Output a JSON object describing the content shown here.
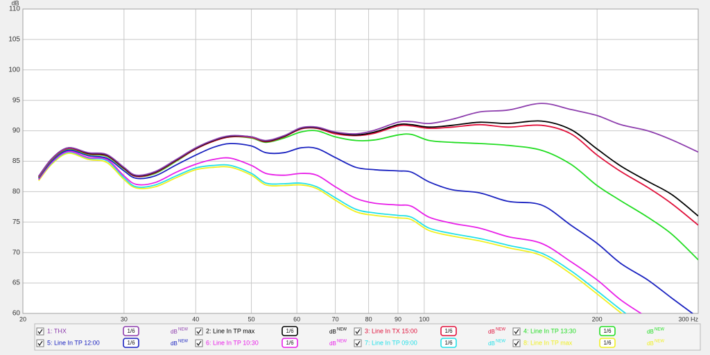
{
  "chart_data": {
    "type": "line",
    "x_scale": "log",
    "grid": true,
    "y_label": "dB",
    "xlim": [
      20,
      300
    ],
    "ylim": [
      60,
      110
    ],
    "xticks": [
      20,
      30,
      40,
      50,
      60,
      70,
      80,
      90,
      100,
      200,
      {
        "value": 300,
        "label": "300 Hz"
      }
    ],
    "yticks": [
      60,
      65,
      70,
      75,
      80,
      85,
      90,
      95,
      100,
      105,
      110
    ],
    "x": [
      21.3,
      22.5,
      24,
      26,
      28,
      30,
      31.5,
      34,
      37,
      40,
      43,
      46,
      50,
      53,
      57,
      61,
      65,
      70,
      76,
      82,
      90,
      95,
      102,
      112,
      125,
      140,
      160,
      180,
      200,
      220,
      245,
      270,
      300
    ],
    "series": [
      {
        "name": "1: THX",
        "color": "#8d3dad",
        "values": [
          82.5,
          85.5,
          87.2,
          86.4,
          86.1,
          84,
          82.7,
          83.3,
          85.3,
          87.2,
          88.5,
          89.2,
          89,
          88.4,
          89.2,
          90.5,
          90.6,
          89.8,
          89.5,
          90.1,
          91.4,
          91.5,
          91.2,
          91.9,
          93.1,
          93.4,
          94.5,
          93.5,
          92.5,
          91,
          90,
          88.5,
          86.5
        ]
      },
      {
        "name": "2: Line In TP max",
        "color": "#000000",
        "values": [
          82.5,
          85.5,
          87.2,
          86.3,
          86,
          83.9,
          82.6,
          83.2,
          85.2,
          87.1,
          88.4,
          89.1,
          89,
          88.3,
          89.1,
          90.4,
          90.5,
          89.7,
          89.3,
          89.8,
          91,
          91,
          90.6,
          90.9,
          91.4,
          91.2,
          91.6,
          90.2,
          87,
          84.2,
          81.7,
          79.5,
          76
        ]
      },
      {
        "name": "3: Line In TX 15:00",
        "color": "#e0103a",
        "values": [
          82.4,
          85.4,
          87.1,
          86.2,
          85.9,
          83.8,
          82.5,
          83.1,
          85.1,
          87,
          88.3,
          89,
          88.9,
          88.2,
          89,
          90.3,
          90.4,
          89.5,
          89.2,
          89.6,
          90.8,
          90.8,
          90.4,
          90.6,
          91,
          90.6,
          90.9,
          89.5,
          86,
          83.3,
          80.7,
          78,
          74.5
        ]
      },
      {
        "name": "4: Line In TP 13:30",
        "color": "#22dd22",
        "values": [
          82.3,
          85.3,
          87,
          86.1,
          85.8,
          83.7,
          82.5,
          83,
          85,
          87,
          88.3,
          89,
          88.8,
          88.1,
          88.8,
          89.8,
          90,
          89,
          88.4,
          88.5,
          89.3,
          89.4,
          88.4,
          88.1,
          87.9,
          87.6,
          86.8,
          84.5,
          81,
          78.5,
          75.8,
          73,
          68.8
        ]
      },
      {
        "name": "5: Line In TP 12:00",
        "color": "#1a22c0",
        "values": [
          82.2,
          85.1,
          86.8,
          85.9,
          85.5,
          83.4,
          82.2,
          82.6,
          84.4,
          86,
          87.3,
          87.9,
          87.5,
          86.4,
          86.4,
          87.2,
          87.1,
          85.6,
          84,
          83.6,
          83.4,
          83.2,
          81.6,
          80.3,
          79.8,
          78.4,
          77.8,
          74.5,
          71.5,
          68.2,
          65.5,
          62.5,
          59.3
        ]
      },
      {
        "name": "6: Line In TP 10:30",
        "color": "#e81ee8",
        "values": [
          82,
          84.9,
          86.6,
          85.6,
          85.3,
          82.6,
          81.2,
          81.5,
          83.2,
          84.5,
          85.3,
          85.5,
          84.3,
          83,
          82.7,
          83,
          82.7,
          80.8,
          78.9,
          78.1,
          77.8,
          77.6,
          75.8,
          74.8,
          74,
          72.6,
          71.5,
          68.5,
          65.5,
          62.2,
          59.3,
          null,
          null
        ]
      },
      {
        "name": "7: Line In TP 09:00",
        "color": "#22e0e8",
        "values": [
          82,
          84.8,
          86.5,
          85.5,
          85.1,
          82.3,
          80.8,
          81.1,
          82.6,
          83.9,
          84.3,
          84.3,
          83,
          81.4,
          81.3,
          81.4,
          80.8,
          79,
          77.1,
          76.5,
          76.1,
          75.8,
          74,
          73.1,
          72.3,
          71.2,
          69.9,
          67,
          63.7,
          60.6,
          57.3,
          null,
          null
        ]
      },
      {
        "name": "8: Line In TP max",
        "color": "#f0f020",
        "values": [
          81.8,
          84.6,
          86.3,
          85.3,
          84.8,
          82,
          80.6,
          80.8,
          82.3,
          83.6,
          84,
          84,
          82.7,
          81.1,
          81,
          81.1,
          80.5,
          78.6,
          76.7,
          76.1,
          75.7,
          75.4,
          73.6,
          72.7,
          71.9,
          70.8,
          69.5,
          66.5,
          63.2,
          60.1,
          56.9,
          null,
          null
        ]
      }
    ],
    "legend_controls": {
      "smoothing": "1/6",
      "unit": "dB",
      "badge": "NEW"
    }
  }
}
